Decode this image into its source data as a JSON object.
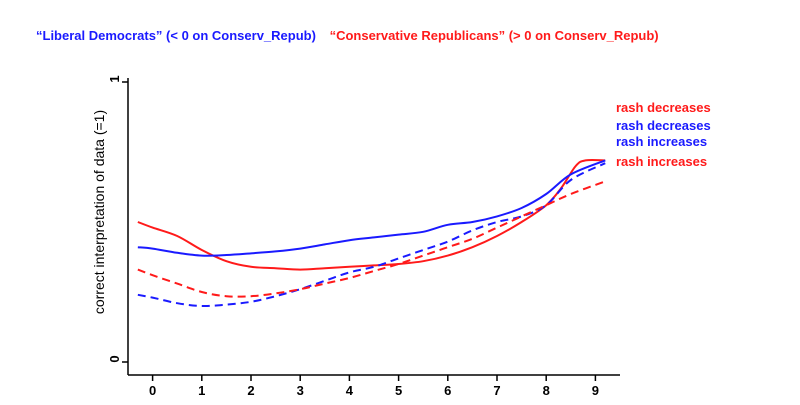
{
  "chart_data": {
    "type": "line",
    "group_labels": {
      "liberal": {
        "text": "“Liberal Democrats” (< 0 on Conserv_Repub)",
        "color": "#1a1aff"
      },
      "conservative": {
        "text": "“Conservative Republicans” (> 0 on Conserv_Repub)",
        "color": "#ff1a1a"
      }
    },
    "ylabel": "correct interpretation of data (=1)",
    "xlim": [
      -0.5,
      9.5
    ],
    "ylim": [
      0,
      1
    ],
    "xticks": [
      "0",
      "1",
      "2",
      "3",
      "4",
      "5",
      "6",
      "7",
      "8",
      "9"
    ],
    "yticks": [
      "0",
      "1"
    ],
    "grid": false,
    "series": [
      {
        "name": "rash decreases",
        "group": "conservative",
        "color": "#ff1a1a",
        "dash": "solid",
        "x": [
          -0.3,
          0,
          0.5,
          1,
          1.5,
          2,
          2.5,
          3,
          3.5,
          4,
          4.5,
          5,
          5.5,
          6,
          6.5,
          7,
          7.5,
          8,
          8.3,
          8.6,
          8.8,
          9.2
        ],
        "y": [
          0.5,
          0.48,
          0.45,
          0.4,
          0.36,
          0.34,
          0.335,
          0.33,
          0.335,
          0.34,
          0.345,
          0.35,
          0.36,
          0.38,
          0.41,
          0.45,
          0.5,
          0.56,
          0.62,
          0.7,
          0.72,
          0.72
        ]
      },
      {
        "name": "rash decreases",
        "group": "liberal",
        "color": "#1a1aff",
        "dash": "solid",
        "x": [
          -0.3,
          0,
          0.5,
          1,
          1.5,
          2,
          2.5,
          3,
          3.5,
          4,
          4.5,
          5,
          5.5,
          6,
          6.5,
          7,
          7.5,
          8,
          8.5,
          9.2
        ],
        "y": [
          0.41,
          0.405,
          0.39,
          0.38,
          0.382,
          0.388,
          0.395,
          0.405,
          0.42,
          0.435,
          0.445,
          0.455,
          0.465,
          0.49,
          0.5,
          0.52,
          0.55,
          0.6,
          0.67,
          0.72
        ]
      },
      {
        "name": "rash increases",
        "group": "liberal",
        "color": "#1a1aff",
        "dash": "dashed",
        "x": [
          -0.3,
          0,
          0.5,
          1,
          1.5,
          2,
          2.5,
          3,
          3.5,
          4,
          4.5,
          5,
          5.5,
          6,
          6.5,
          7,
          7.5,
          8,
          8.5,
          9.2
        ],
        "y": [
          0.24,
          0.23,
          0.21,
          0.2,
          0.205,
          0.215,
          0.235,
          0.26,
          0.29,
          0.32,
          0.34,
          0.37,
          0.4,
          0.43,
          0.47,
          0.5,
          0.52,
          0.56,
          0.65,
          0.71
        ]
      },
      {
        "name": "rash increases",
        "group": "conservative",
        "color": "#ff1a1a",
        "dash": "dashed",
        "x": [
          -0.3,
          0,
          0.5,
          1,
          1.5,
          2,
          2.5,
          3,
          3.5,
          4,
          4.5,
          5,
          5.5,
          6,
          6.5,
          7,
          7.5,
          8,
          8.5,
          9.2
        ],
        "y": [
          0.33,
          0.31,
          0.28,
          0.25,
          0.235,
          0.235,
          0.245,
          0.26,
          0.28,
          0.3,
          0.325,
          0.35,
          0.38,
          0.41,
          0.44,
          0.48,
          0.52,
          0.56,
          0.6,
          0.645
        ]
      }
    ],
    "end_labels": [
      {
        "text": "rash decreases",
        "color": "#ff1a1a"
      },
      {
        "text": "rash decreases",
        "color": "#1a1aff"
      },
      {
        "text": "rash increases",
        "color": "#1a1aff"
      },
      {
        "text": "rash increases",
        "color": "#ff1a1a"
      }
    ]
  }
}
